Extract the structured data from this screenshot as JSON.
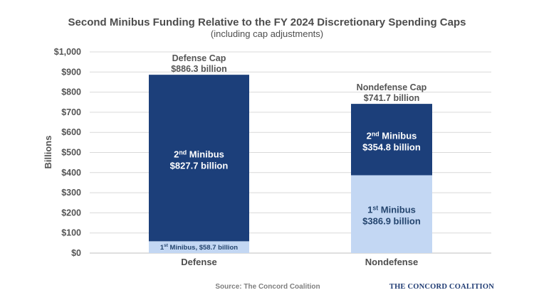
{
  "chart_data": {
    "type": "bar",
    "stacked": true,
    "title": "Second Minibus Funding Relative to the FY 2024 Discretionary Spending Caps",
    "subtitle": "(including cap adjustments)",
    "ylabel": "Billions",
    "xlabel": "",
    "ylim": [
      0,
      1000
    ],
    "yticks": [
      0,
      100,
      200,
      300,
      400,
      500,
      600,
      700,
      800,
      900,
      1000
    ],
    "ytick_labels": [
      "$0",
      "$100",
      "$200",
      "$300",
      "$400",
      "$500",
      "$600",
      "$700",
      "$800",
      "$900",
      "$1,000"
    ],
    "grid": true,
    "categories": [
      "Defense",
      "Nondefense"
    ],
    "caps": [
      {
        "label": "Defense Cap",
        "value_label": "$886.3 billion",
        "value": 886.3
      },
      {
        "label": "Nondefense Cap",
        "value_label": "$741.7 billion",
        "value": 741.7
      }
    ],
    "series": [
      {
        "name": "1st Minibus",
        "values": [
          58.7,
          386.9
        ],
        "color": "#c3d7f3",
        "labels": [
          {
            "prefix": "1",
            "sup": "st",
            "text": " Minibus, $58.7 billion",
            "amount": ""
          },
          {
            "prefix": "1",
            "sup": "st",
            "text": " Minibus",
            "amount": "$386.9 billion"
          }
        ]
      },
      {
        "name": "2nd Minibus",
        "values": [
          827.7,
          354.8
        ],
        "color": "#1c3f7a",
        "labels": [
          {
            "prefix": "2",
            "sup": "nd",
            "text": " Minibus",
            "amount": "$827.7 billion"
          },
          {
            "prefix": "2",
            "sup": "nd",
            "text": " Minibus",
            "amount": "$354.8 billion"
          }
        ]
      }
    ]
  },
  "footer": {
    "source": "Source: The Concord Coalition",
    "brand": "THE CONCORD COALITION"
  },
  "colors": {
    "grid": "#d9d9d9",
    "axis": "#bfbfbf"
  }
}
